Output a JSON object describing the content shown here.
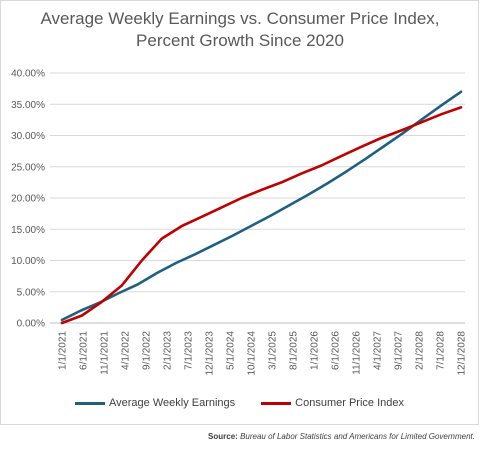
{
  "chart_data": {
    "type": "line",
    "title": "Average Weekly Earnings vs. Consumer Price Index, Percent Growth Since 2020",
    "xlabel": "",
    "ylabel": "",
    "ylim": [
      0,
      40
    ],
    "y_ticks": [
      "0.00%",
      "5.00%",
      "10.00%",
      "15.00%",
      "20.00%",
      "25.00%",
      "30.00%",
      "35.00%",
      "40.00%"
    ],
    "x_ticks": [
      "1/1/2021",
      "6/1/2021",
      "11/1/2021",
      "4/1/2022",
      "9/1/2022",
      "2/1/2023",
      "7/1/2023",
      "12/1/2023",
      "5/1/2024",
      "10/1/2024",
      "3/1/2025",
      "8/1/2025",
      "1/1/2026",
      "6/1/2026",
      "11/1/2026",
      "4/1/2027",
      "9/1/2027",
      "2/1/2028",
      "7/1/2028",
      "12/1/2028"
    ],
    "grid": true,
    "legend_position": "bottom",
    "series": [
      {
        "name": "Average Weekly Earnings",
        "color": "#1f5f82",
        "values": [
          0.5,
          2.0,
          3.3,
          4.8,
          6.2,
          8.0,
          9.6,
          11.0,
          12.5,
          14.0,
          15.6,
          17.2,
          18.9,
          20.6,
          22.4,
          24.3,
          26.3,
          28.4,
          30.5,
          32.7,
          34.9,
          37.0
        ]
      },
      {
        "name": "Consumer Price Index",
        "color": "#c00000",
        "values": [
          0.0,
          1.2,
          3.4,
          6.0,
          10.0,
          13.5,
          15.5,
          17.0,
          18.5,
          20.0,
          21.3,
          22.5,
          23.9,
          25.2,
          26.7,
          28.2,
          29.6,
          30.8,
          32.1,
          33.4,
          34.5
        ]
      }
    ]
  },
  "source": {
    "label": "Source:",
    "text": "Bureau of Labor Statistics and Americans for Limited Government."
  }
}
